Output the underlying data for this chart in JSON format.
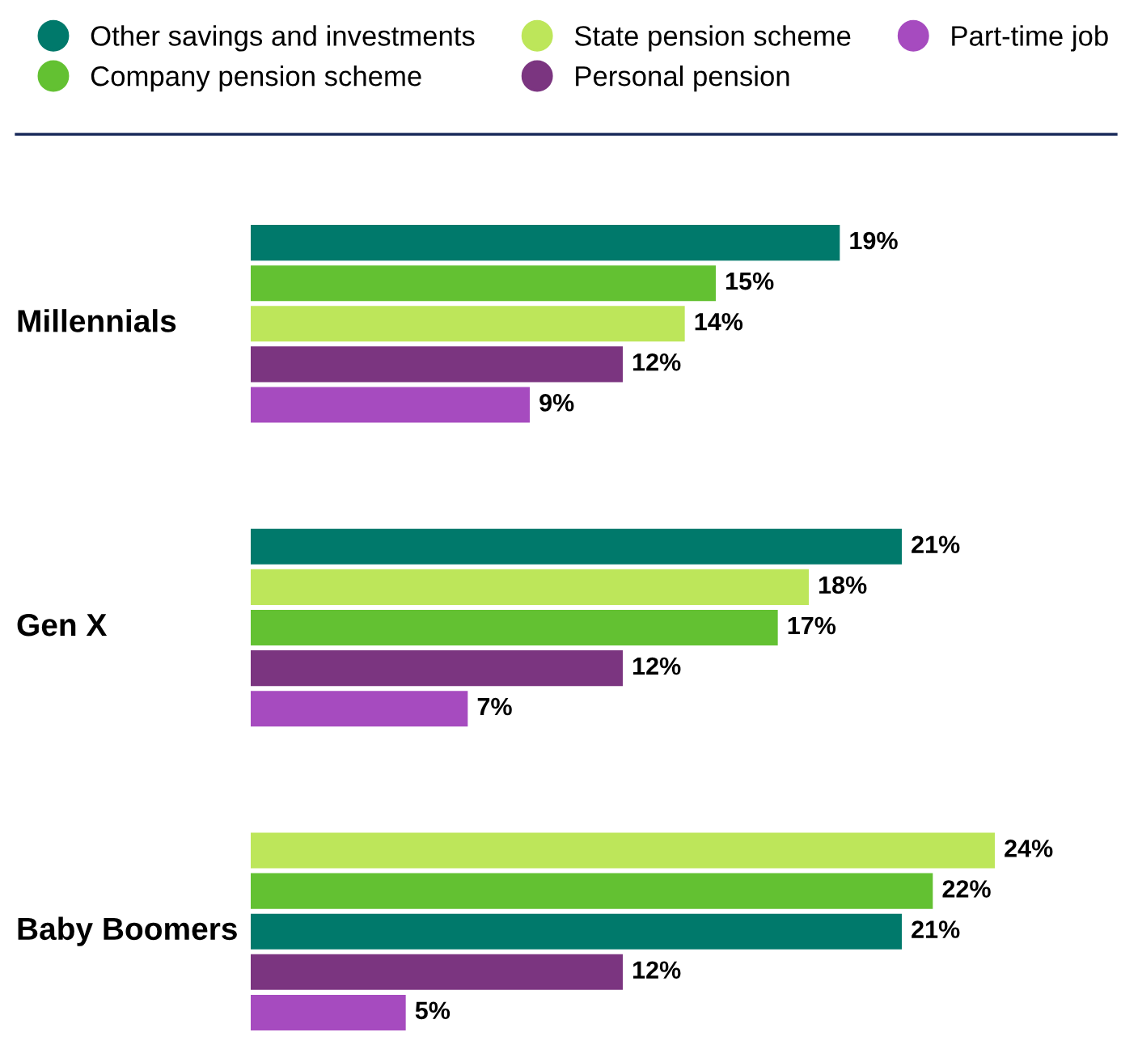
{
  "chart_data": {
    "type": "bar",
    "orientation": "horizontal",
    "categories": [
      "Millennials",
      "Gen X",
      "Baby Boomers"
    ],
    "series": [
      {
        "name": "Other savings and investments",
        "color": "#00796b",
        "values": [
          19,
          21,
          21
        ],
        "value_labels": [
          "19%",
          "21%",
          "21%"
        ]
      },
      {
        "name": "Company pension scheme",
        "color": "#63c132",
        "values": [
          15,
          17,
          22
        ],
        "value_labels": [
          "15%",
          "17%",
          "22%"
        ]
      },
      {
        "name": "State pension scheme",
        "color": "#bde65a",
        "values": [
          14,
          18,
          24
        ],
        "value_labels": [
          "14%",
          "18%",
          "24%"
        ]
      },
      {
        "name": "Personal pension",
        "color": "#7b3580",
        "values": [
          12,
          12,
          12
        ],
        "value_labels": [
          "12%",
          "12%",
          "12%"
        ]
      },
      {
        "name": "Part-time job",
        "color": "#a64bbf",
        "values": [
          9,
          7,
          5
        ],
        "value_labels": [
          "9%",
          "7%",
          "5%"
        ]
      }
    ],
    "legend": "top"
  }
}
